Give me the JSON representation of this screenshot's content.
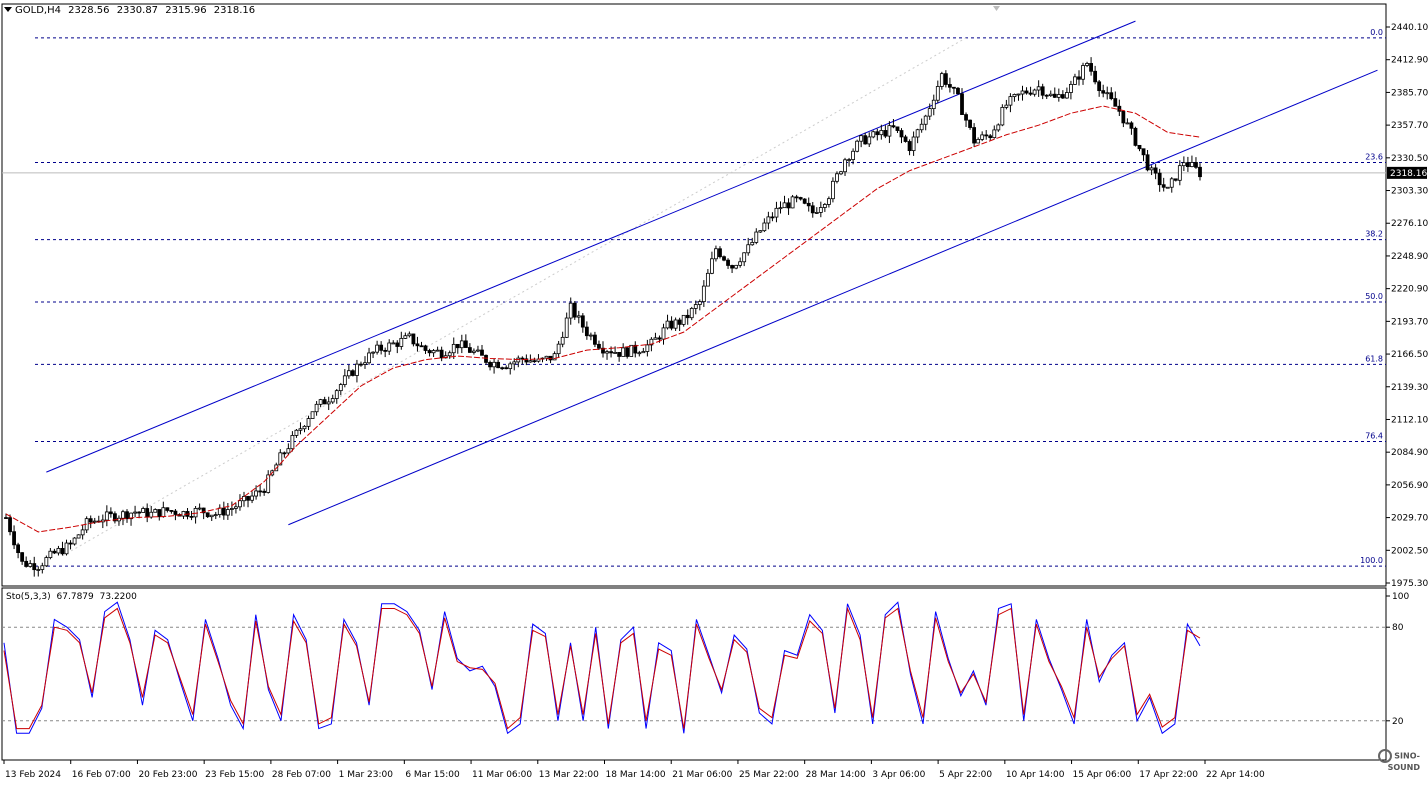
{
  "header": {
    "symbol": "GOLD,H4",
    "open": "2328.56",
    "high": "2330.87",
    "low": "2315.96",
    "close": "2318.16"
  },
  "indicator_header": {
    "name": "Sto(5,3,3)",
    "main": "67.7879",
    "signal": "73.2200"
  },
  "current_price_label": "2318.16",
  "colors": {
    "candle": "#000000",
    "channel": "#0000c8",
    "fib": "#00008b",
    "ma": "#cc0000",
    "sto_main": "#0000ff",
    "sto_signal": "#cc0000",
    "grid_dotted": "#888888"
  },
  "logo_text": "SINO-SOUND",
  "chart_data": [
    {
      "type": "candlestick",
      "symbol": "GOLD",
      "timeframe": "H4",
      "ylim": [
        1975.3,
        2440.0
      ],
      "y_ticks": [
        "2440.10",
        "2412.90",
        "2385.70",
        "2357.70",
        "2330.50",
        "2303.30",
        "2276.10",
        "2248.90",
        "2220.90",
        "2193.70",
        "2166.50",
        "2139.30",
        "2112.10",
        "2084.90",
        "2056.90",
        "2029.70",
        "2002.50",
        "1975.30"
      ],
      "x_ticks": [
        "13 Feb 2024",
        "16 Feb 07:00",
        "20 Feb 23:00",
        "23 Feb 15:00",
        "28 Feb 07:00",
        "1 Mar 23:00",
        "6 Mar 15:00",
        "11 Mar 06:00",
        "13 Mar 22:00",
        "18 Mar 14:00",
        "21 Mar 06:00",
        "25 Mar 22:00",
        "28 Mar 14:00",
        "3 Apr 06:00",
        "5 Apr 22:00",
        "10 Apr 14:00",
        "15 Apr 06:00",
        "17 Apr 22:00",
        "22 Apr 14:00"
      ],
      "close_path": [
        [
          0,
          2030
        ],
        [
          4,
          1992
        ],
        [
          8,
          1990
        ],
        [
          12,
          2000
        ],
        [
          16,
          2007
        ],
        [
          20,
          2025
        ],
        [
          24,
          2030
        ],
        [
          28,
          2032
        ],
        [
          32,
          2035
        ],
        [
          36,
          2033
        ],
        [
          40,
          2036
        ],
        [
          44,
          2034
        ],
        [
          48,
          2036
        ],
        [
          52,
          2033
        ],
        [
          56,
          2038
        ],
        [
          60,
          2045
        ],
        [
          64,
          2055
        ],
        [
          68,
          2080
        ],
        [
          72,
          2100
        ],
        [
          76,
          2120
        ],
        [
          80,
          2130
        ],
        [
          84,
          2145
        ],
        [
          88,
          2160
        ],
        [
          92,
          2170
        ],
        [
          96,
          2175
        ],
        [
          100,
          2180
        ],
        [
          104,
          2170
        ],
        [
          108,
          2168
        ],
        [
          112,
          2175
        ],
        [
          116,
          2168
        ],
        [
          120,
          2160
        ],
        [
          124,
          2158
        ],
        [
          128,
          2163
        ],
        [
          132,
          2160
        ],
        [
          136,
          2165
        ],
        [
          140,
          2205
        ],
        [
          144,
          2185
        ],
        [
          148,
          2172
        ],
        [
          152,
          2168
        ],
        [
          156,
          2170
        ],
        [
          160,
          2175
        ],
        [
          164,
          2190
        ],
        [
          168,
          2195
        ],
        [
          172,
          2210
        ],
        [
          176,
          2255
        ],
        [
          180,
          2240
        ],
        [
          184,
          2255
        ],
        [
          188,
          2275
        ],
        [
          192,
          2290
        ],
        [
          196,
          2295
        ],
        [
          200,
          2285
        ],
        [
          204,
          2300
        ],
        [
          208,
          2330
        ],
        [
          212,
          2345
        ],
        [
          216,
          2350
        ],
        [
          220,
          2355
        ],
        [
          224,
          2340
        ],
        [
          228,
          2365
        ],
        [
          232,
          2400
        ],
        [
          236,
          2380
        ],
        [
          240,
          2345
        ],
        [
          244,
          2350
        ],
        [
          248,
          2375
        ],
        [
          252,
          2385
        ],
        [
          256,
          2390
        ],
        [
          260,
          2380
        ],
        [
          264,
          2390
        ],
        [
          268,
          2410
        ],
        [
          272,
          2385
        ],
        [
          276,
          2370
        ],
        [
          280,
          2345
        ],
        [
          284,
          2318
        ],
        [
          288,
          2303
        ],
        [
          292,
          2328
        ],
        [
          296,
          2318.16
        ]
      ],
      "moving_average_path": [
        [
          0,
          2033
        ],
        [
          8,
          2018
        ],
        [
          16,
          2022
        ],
        [
          24,
          2027
        ],
        [
          32,
          2030
        ],
        [
          40,
          2031
        ],
        [
          48,
          2034
        ],
        [
          56,
          2040
        ],
        [
          64,
          2060
        ],
        [
          72,
          2090
        ],
        [
          80,
          2115
        ],
        [
          88,
          2140
        ],
        [
          96,
          2155
        ],
        [
          104,
          2162
        ],
        [
          112,
          2165
        ],
        [
          120,
          2163
        ],
        [
          128,
          2162
        ],
        [
          136,
          2163
        ],
        [
          144,
          2170
        ],
        [
          152,
          2172
        ],
        [
          160,
          2175
        ],
        [
          168,
          2185
        ],
        [
          176,
          2205
        ],
        [
          184,
          2225
        ],
        [
          192,
          2245
        ],
        [
          200,
          2265
        ],
        [
          208,
          2285
        ],
        [
          216,
          2305
        ],
        [
          224,
          2320
        ],
        [
          232,
          2330
        ],
        [
          240,
          2340
        ],
        [
          248,
          2350
        ],
        [
          256,
          2358
        ],
        [
          264,
          2368
        ],
        [
          272,
          2374
        ],
        [
          280,
          2368
        ],
        [
          288,
          2352
        ],
        [
          296,
          2348
        ]
      ],
      "channel_upper": [
        [
          10,
          2068
        ],
        [
          280,
          2445
        ]
      ],
      "channel_lower": [
        [
          70,
          2024
        ],
        [
          340,
          2404
        ]
      ],
      "fibonacci": [
        {
          "level": "0.0",
          "price": 2431.0
        },
        {
          "level": "23.6",
          "price": 2326.8
        },
        {
          "level": "38.2",
          "price": 2262.3
        },
        {
          "level": "50.0",
          "price": 2210.2
        },
        {
          "level": "61.8",
          "price": 2158.1
        },
        {
          "level": "76.4",
          "price": 2093.6
        },
        {
          "level": "100.0",
          "price": 1989.4
        }
      ]
    },
    {
      "type": "line",
      "title": "Sto(5,3,3)",
      "ylim": [
        0,
        100
      ],
      "y_ticks": [
        "100",
        "80",
        "20"
      ],
      "levels": [
        80,
        20
      ],
      "series": [
        {
          "name": "main",
          "values": [
            70,
            12,
            12,
            28,
            85,
            80,
            72,
            35,
            90,
            96,
            72,
            30,
            78,
            72,
            45,
            20,
            85,
            60,
            30,
            15,
            88,
            40,
            20,
            88,
            72,
            15,
            18,
            85,
            70,
            30,
            95,
            95,
            90,
            78,
            40,
            90,
            60,
            52,
            55,
            42,
            12,
            18,
            82,
            76,
            20,
            70,
            20,
            80,
            15,
            72,
            80,
            15,
            70,
            65,
            12,
            85,
            62,
            38,
            75,
            66,
            25,
            18,
            65,
            62,
            88,
            78,
            25,
            95,
            75,
            18,
            88,
            96,
            50,
            18,
            90,
            60,
            36,
            52,
            30,
            92,
            95,
            20,
            85,
            60,
            40,
            18,
            85,
            45,
            62,
            70,
            20,
            35,
            12,
            18,
            82,
            68
          ]
        },
        {
          "name": "signal",
          "values": [
            65,
            15,
            15,
            30,
            80,
            78,
            70,
            38,
            86,
            92,
            70,
            35,
            75,
            70,
            47,
            24,
            82,
            58,
            33,
            18,
            84,
            42,
            24,
            84,
            70,
            18,
            22,
            82,
            68,
            32,
            92,
            92,
            88,
            76,
            42,
            86,
            58,
            54,
            53,
            44,
            15,
            22,
            78,
            74,
            24,
            68,
            24,
            76,
            18,
            70,
            76,
            20,
            66,
            62,
            15,
            82,
            60,
            40,
            72,
            64,
            28,
            22,
            62,
            60,
            84,
            76,
            28,
            92,
            72,
            22,
            86,
            92,
            52,
            22,
            86,
            58,
            38,
            50,
            32,
            88,
            92,
            24,
            82,
            58,
            42,
            22,
            80,
            48,
            60,
            68,
            24,
            37,
            16,
            22,
            78,
            73
          ]
        }
      ]
    }
  ]
}
